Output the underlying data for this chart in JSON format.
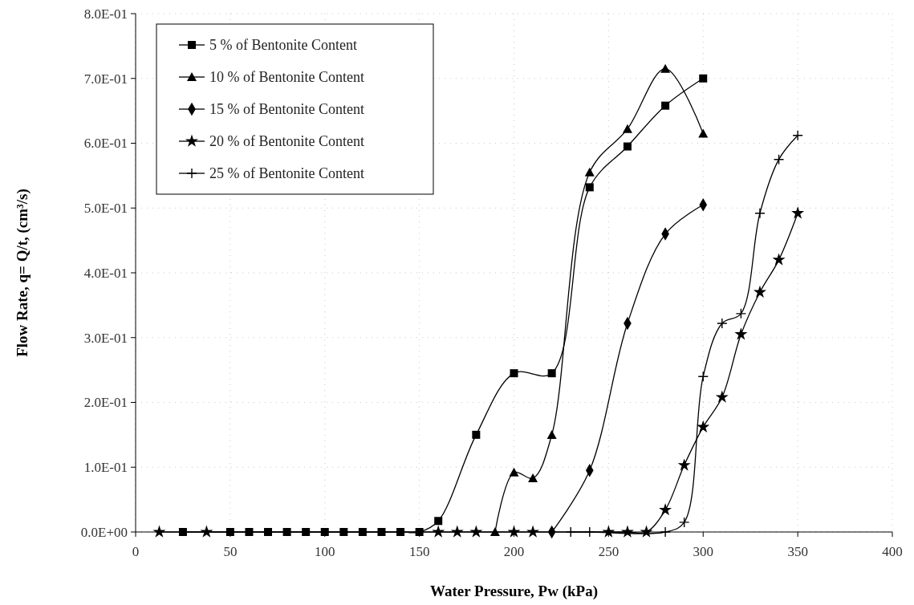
{
  "chart_data": {
    "type": "line",
    "xlabel": "Water Pressure, Pw (kPa)",
    "ylabel": "Flow Rate, q= Q/t, (cm³/s)",
    "xlim": [
      0,
      400
    ],
    "xticks": [
      0,
      50,
      100,
      150,
      200,
      250,
      300,
      350,
      400
    ],
    "ylim": [
      0,
      0.8
    ],
    "yticks": [
      {
        "value": 0,
        "label": "0.0E+00"
      },
      {
        "value": 0.1,
        "label": "1.0E-01"
      },
      {
        "value": 0.2,
        "label": "2.0E-01"
      },
      {
        "value": 0.3,
        "label": "3.0E-01"
      },
      {
        "value": 0.4,
        "label": "4.0E-01"
      },
      {
        "value": 0.5,
        "label": "5.0E-01"
      },
      {
        "value": 0.6,
        "label": "6.0E-01"
      },
      {
        "value": 0.7,
        "label": "7.0E-01"
      },
      {
        "value": 0.8,
        "label": "8.0E-01"
      }
    ],
    "grid": true,
    "legend": "top left",
    "series": [
      {
        "name": "5 % of Bentonite Content",
        "color": "#000000",
        "marker": "square",
        "x": [
          25,
          50,
          60,
          70,
          80,
          90,
          100,
          110,
          120,
          130,
          140,
          150,
          160,
          180,
          200,
          220,
          240,
          260,
          280,
          300
        ],
        "values": [
          0,
          0,
          0,
          0,
          0,
          0,
          0,
          0,
          0,
          0,
          0,
          0,
          0.017,
          0.15,
          0.245,
          0.245,
          0.532,
          0.595,
          0.658,
          0.7
        ]
      },
      {
        "name": "10 % of Bentonite Content",
        "color": "#000000",
        "marker": "triangle",
        "x": [
          190,
          200,
          210,
          220,
          240,
          260,
          280,
          300
        ],
        "values": [
          0,
          0.092,
          0.083,
          0.15,
          0.555,
          0.622,
          0.715,
          0.615
        ]
      },
      {
        "name": "15 % of Bentonite Content",
        "color": "#000000",
        "marker": "diamond",
        "x": [
          220,
          240,
          260,
          280,
          300
        ],
        "values": [
          0,
          0.095,
          0.322,
          0.46,
          0.505
        ]
      },
      {
        "name": "20 % of Bentonite Content",
        "color": "#000000",
        "marker": "star",
        "x": [
          12.5,
          37.5,
          160,
          170,
          180,
          200,
          210,
          250,
          260,
          270,
          280,
          290,
          300,
          310,
          320,
          330,
          340,
          350
        ],
        "values": [
          0,
          0,
          0,
          0,
          0,
          0,
          0,
          0,
          0,
          0,
          0.034,
          0.103,
          0.162,
          0.208,
          0.305,
          0.37,
          0.42,
          0.492
        ]
      },
      {
        "name": "25 % of Bentonite Content",
        "color": "#000000",
        "marker": "cross",
        "x": [
          230,
          240,
          280,
          290,
          300,
          310,
          320,
          330,
          340,
          350
        ],
        "values": [
          0,
          0,
          0,
          0.015,
          0.24,
          0.322,
          0.337,
          0.492,
          0.575,
          0.612
        ]
      }
    ]
  }
}
